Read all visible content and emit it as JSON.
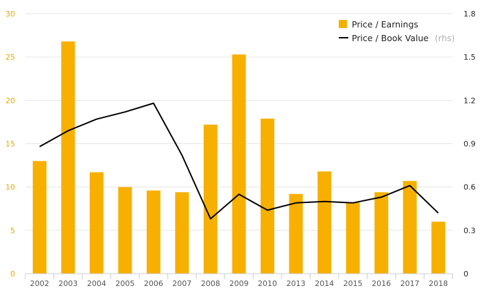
{
  "chart_data": {
    "type": "bar",
    "categories": [
      "2002",
      "2003",
      "2004",
      "2005",
      "2006",
      "2007",
      "2008",
      "2009",
      "2010",
      "2013",
      "2014",
      "2015",
      "2016",
      "2017",
      "2018"
    ],
    "series": [
      {
        "name": "Price / Earnings",
        "type": "bar",
        "axis": "left",
        "color": "#f7b000",
        "values": [
          13.0,
          26.8,
          11.7,
          10.0,
          9.6,
          9.4,
          17.2,
          25.3,
          17.9,
          9.2,
          11.8,
          8.2,
          9.4,
          10.7,
          6.0
        ]
      },
      {
        "name": "Price / Book Value",
        "legend_note": "(rhs)",
        "type": "line",
        "axis": "right",
        "color": "#000000",
        "values": [
          0.88,
          0.99,
          1.07,
          1.12,
          1.18,
          0.82,
          0.38,
          0.55,
          0.44,
          0.49,
          0.5,
          0.49,
          0.53,
          0.61,
          0.42
        ]
      }
    ],
    "y_left": {
      "ticks": [
        "0",
        "5",
        "10",
        "15",
        "20",
        "25",
        "30"
      ],
      "ylim": [
        0,
        30
      ]
    },
    "y_right": {
      "ticks": [
        "0",
        "0.3",
        "0.6",
        "0.9",
        "1.2",
        "1.5",
        "1.8"
      ],
      "ylim": [
        0,
        1.8
      ]
    },
    "grid": true,
    "legend": "top-right"
  }
}
